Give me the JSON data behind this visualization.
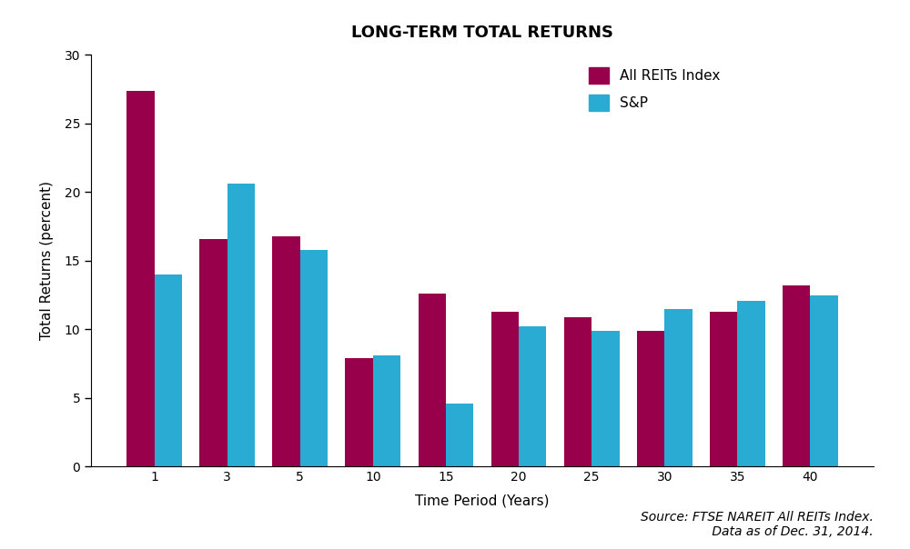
{
  "title": "LONG-TERM TOTAL RETURNS",
  "xlabel": "Time Period (Years)",
  "ylabel": "Total Returns (percent)",
  "categories": [
    1,
    3,
    5,
    10,
    15,
    20,
    25,
    30,
    35,
    40
  ],
  "reits_values": [
    27.4,
    16.6,
    16.8,
    7.9,
    12.6,
    11.3,
    10.9,
    9.9,
    11.3,
    13.2
  ],
  "sp_values": [
    14.0,
    20.6,
    15.8,
    8.1,
    4.6,
    10.2,
    9.9,
    11.5,
    12.1,
    12.5
  ],
  "reits_color": "#99004C",
  "sp_color": "#29ABD4",
  "ylim": [
    0,
    30
  ],
  "yticks": [
    0,
    5,
    10,
    15,
    20,
    25,
    30
  ],
  "legend_labels": [
    "All REITs Index",
    "S&P"
  ],
  "background_color": "#FFFFFF",
  "bar_width": 0.38,
  "title_fontsize": 13,
  "axis_label_fontsize": 11,
  "tick_fontsize": 10,
  "legend_fontsize": 11,
  "source_fontsize": 10
}
